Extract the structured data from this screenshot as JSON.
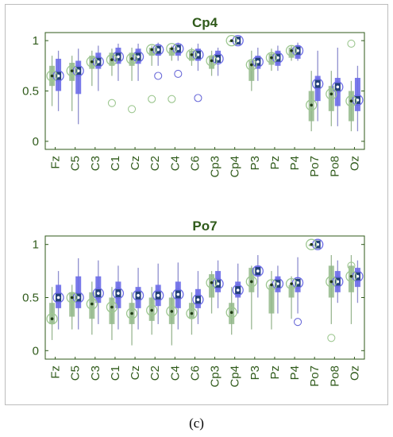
{
  "caption": "(c)",
  "colors": {
    "green": "#2f5a1a",
    "blue_box": "#6b6be8",
    "dark_box": "#23407a",
    "green_box": "#93b98a",
    "whisker_blue": "#8f8fcf",
    "whisker_green": "#9ab792",
    "outlier_blue": "#6a6ad8",
    "outlier_green": "#9dc790"
  },
  "chart_data": [
    {
      "type": "box",
      "title": "Cp4",
      "ylim": [
        0,
        1
      ],
      "yticks": [
        "0",
        "0.5",
        "1"
      ],
      "categories": [
        "Fz",
        "C5",
        "C3",
        "C1",
        "Cz",
        "C2",
        "C4",
        "C6",
        "Cp3",
        "Cp4",
        "P3",
        "Pz",
        "P4",
        "Po7",
        "Po8",
        "Oz"
      ],
      "series": [
        {
          "whisker": [
            [
              0.3,
              0.9
            ],
            [
              0.17,
              0.92
            ],
            [
              0.5,
              0.95
            ],
            [
              0.6,
              0.97
            ],
            [
              0.6,
              0.97
            ],
            [
              0.75,
              0.98
            ],
            [
              0.8,
              0.98
            ],
            [
              0.7,
              0.97
            ],
            [
              0.65,
              0.93
            ],
            [
              1.0,
              1.0
            ],
            [
              0.6,
              0.93
            ],
            [
              0.7,
              0.95
            ],
            [
              0.8,
              0.98
            ],
            [
              0.2,
              0.9
            ],
            [
              0.15,
              0.93
            ],
            [
              0.1,
              0.75
            ]
          ],
          "box": [
            [
              0.5,
              0.82
            ],
            [
              0.47,
              0.8
            ],
            [
              0.72,
              0.88
            ],
            [
              0.77,
              0.93
            ],
            [
              0.77,
              0.92
            ],
            [
              0.85,
              0.95
            ],
            [
              0.85,
              0.95
            ],
            [
              0.8,
              0.92
            ],
            [
              0.78,
              0.9
            ],
            [
              1.0,
              1.0
            ],
            [
              0.72,
              0.85
            ],
            [
              0.75,
              0.9
            ],
            [
              0.82,
              0.95
            ],
            [
              0.4,
              0.65
            ],
            [
              0.35,
              0.63
            ],
            [
              0.3,
              0.63
            ]
          ],
          "median": [
            0.65,
            0.7,
            0.79,
            0.84,
            0.84,
            0.91,
            0.92,
            0.86,
            0.82,
            1.0,
            0.79,
            0.83,
            0.9,
            0.57,
            0.54,
            0.41
          ],
          "outliers": [
            [],
            [],
            [],
            [],
            [],
            [
              0.65
            ],
            [
              0.67
            ],
            [
              0.43
            ],
            [],
            [],
            [],
            [],
            [],
            [],
            [],
            []
          ]
        },
        {
          "whisker": [
            [
              0.35,
              0.85
            ],
            [
              0.3,
              0.85
            ],
            [
              0.55,
              0.9
            ],
            [
              0.65,
              0.92
            ],
            [
              0.6,
              0.93
            ],
            [
              0.75,
              0.95
            ],
            [
              0.8,
              0.95
            ],
            [
              0.75,
              0.93
            ],
            [
              0.65,
              0.9
            ],
            [
              1.0,
              1.0
            ],
            [
              0.5,
              0.9
            ],
            [
              0.7,
              0.92
            ],
            [
              0.8,
              0.95
            ],
            [
              0.1,
              0.7
            ],
            [
              0.15,
              0.7
            ],
            [
              0.1,
              0.6
            ]
          ],
          "box": [
            [
              0.55,
              0.75
            ],
            [
              0.6,
              0.78
            ],
            [
              0.72,
              0.85
            ],
            [
              0.75,
              0.88
            ],
            [
              0.75,
              0.88
            ],
            [
              0.85,
              0.93
            ],
            [
              0.85,
              0.93
            ],
            [
              0.8,
              0.9
            ],
            [
              0.72,
              0.85
            ],
            [
              1.0,
              1.0
            ],
            [
              0.6,
              0.8
            ],
            [
              0.76,
              0.87
            ],
            [
              0.83,
              0.93
            ],
            [
              0.2,
              0.5
            ],
            [
              0.3,
              0.55
            ],
            [
              0.2,
              0.5
            ]
          ],
          "median": [
            0.65,
            0.7,
            0.79,
            0.81,
            0.82,
            0.91,
            0.92,
            0.86,
            0.8,
            1.0,
            0.76,
            0.83,
            0.9,
            0.36,
            0.47,
            0.4
          ],
          "outliers": [
            [],
            [],
            [],
            [
              0.38
            ],
            [
              0.32
            ],
            [
              0.42
            ],
            [
              0.42
            ],
            [],
            [],
            [],
            [],
            [],
            [],
            [],
            [],
            [
              0.97
            ]
          ]
        }
      ]
    },
    {
      "type": "box",
      "title": "Po7",
      "ylim": [
        0,
        1
      ],
      "yticks": [
        "0",
        "0.5",
        "1"
      ],
      "categories": [
        "Fz",
        "C5",
        "C3",
        "C1",
        "Cz",
        "C2",
        "C4",
        "C6",
        "Cp3",
        "Cp4",
        "P3",
        "Pz",
        "P4",
        "Po7",
        "Po8",
        "Oz"
      ],
      "series": [
        {
          "whisker": [
            [
              0.2,
              0.75
            ],
            [
              0.2,
              0.87
            ],
            [
              0.25,
              0.85
            ],
            [
              0.2,
              0.8
            ],
            [
              0.2,
              0.78
            ],
            [
              0.25,
              0.82
            ],
            [
              0.2,
              0.83
            ],
            [
              0.25,
              0.75
            ],
            [
              0.4,
              0.85
            ],
            [
              0.35,
              0.82
            ],
            [
              0.5,
              0.9
            ],
            [
              0.35,
              0.8
            ],
            [
              0.35,
              0.88
            ],
            [
              1.0,
              1.0
            ],
            [
              0.45,
              0.85
            ],
            [
              0.45,
              0.85
            ]
          ],
          "box": [
            [
              0.4,
              0.62
            ],
            [
              0.4,
              0.7
            ],
            [
              0.45,
              0.7
            ],
            [
              0.4,
              0.65
            ],
            [
              0.4,
              0.6
            ],
            [
              0.42,
              0.62
            ],
            [
              0.4,
              0.65
            ],
            [
              0.4,
              0.58
            ],
            [
              0.55,
              0.75
            ],
            [
              0.5,
              0.65
            ],
            [
              0.7,
              0.8
            ],
            [
              0.55,
              0.7
            ],
            [
              0.55,
              0.67
            ],
            [
              1.0,
              1.0
            ],
            [
              0.55,
              0.75
            ],
            [
              0.6,
              0.78
            ]
          ],
          "median": [
            0.5,
            0.5,
            0.54,
            0.54,
            0.52,
            0.52,
            0.53,
            0.48,
            0.63,
            0.57,
            0.75,
            0.63,
            0.64,
            1.0,
            0.65,
            0.7
          ],
          "outliers": [
            [],
            [],
            [],
            [],
            [],
            [],
            [],
            [],
            [],
            [],
            [],
            [],
            [
              0.27
            ],
            [],
            [],
            []
          ]
        },
        {
          "whisker": [
            [
              0.1,
              0.6
            ],
            [
              0.2,
              0.62
            ],
            [
              0.15,
              0.65
            ],
            [
              0.1,
              0.6
            ],
            [
              0.05,
              0.55
            ],
            [
              0.15,
              0.6
            ],
            [
              0.05,
              0.55
            ],
            [
              0.15,
              0.55
            ],
            [
              0.35,
              0.75
            ],
            [
              0.15,
              0.6
            ],
            [
              0.2,
              0.8
            ],
            [
              0.2,
              0.75
            ],
            [
              0.3,
              0.7
            ],
            [
              1.0,
              1.0
            ],
            [
              0.25,
              0.9
            ],
            [
              0.25,
              0.9
            ]
          ],
          "box": [
            [
              0.25,
              0.45
            ],
            [
              0.32,
              0.55
            ],
            [
              0.3,
              0.55
            ],
            [
              0.25,
              0.5
            ],
            [
              0.25,
              0.45
            ],
            [
              0.28,
              0.5
            ],
            [
              0.25,
              0.5
            ],
            [
              0.3,
              0.45
            ],
            [
              0.5,
              0.72
            ],
            [
              0.25,
              0.45
            ],
            [
              0.55,
              0.78
            ],
            [
              0.35,
              0.62
            ],
            [
              0.5,
              0.62
            ],
            [
              1.0,
              1.0
            ],
            [
              0.5,
              0.8
            ],
            [
              0.55,
              0.8
            ]
          ],
          "median": [
            0.3,
            0.5,
            0.44,
            0.41,
            0.35,
            0.38,
            0.37,
            0.35,
            0.64,
            0.36,
            0.65,
            0.62,
            0.63,
            1.0,
            0.65,
            0.7
          ],
          "outliers": [
            [],
            [],
            [],
            [],
            [],
            [],
            [],
            [],
            [],
            [],
            [],
            [],
            [],
            [],
            [
              0.12
            ],
            [
              0.8
            ]
          ]
        }
      ]
    }
  ]
}
